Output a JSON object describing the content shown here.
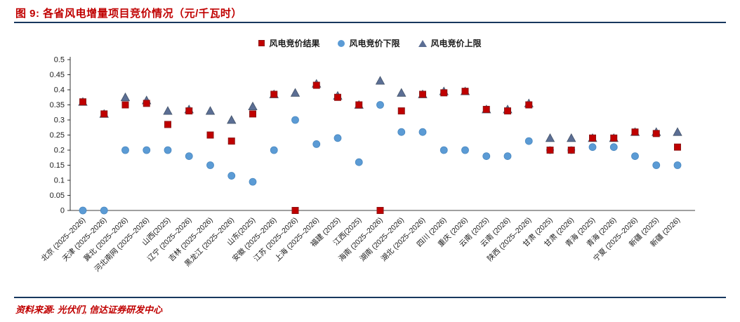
{
  "header": {
    "title": "图 9:  各省风电增量项目竞价情况（元/千瓦时）"
  },
  "footer": {
    "source": "资料来源: 光伏们, 信达证券研发中心"
  },
  "colors": {
    "accent_red": "#C00000",
    "rule_navy": "#17375E",
    "marker_red": "#C00000",
    "marker_blue": "#5B9BD5",
    "marker_slate": "#5B6E94"
  },
  "chart_data": {
    "type": "scatter",
    "title": "各省风电增量项目竞价情况（元/千瓦时）",
    "xlabel": "",
    "ylabel": "",
    "ylim": [
      0,
      0.5
    ],
    "grid": false,
    "legend_position": "top-center",
    "yticks": [
      0,
      0.05,
      0.1,
      0.15,
      0.2,
      0.25,
      0.3,
      0.35,
      0.4,
      0.45,
      0.5
    ],
    "ytick_labels": [
      "0",
      "0.05",
      "0.1",
      "0.15",
      "0.2",
      "0.25",
      "0.3",
      "0.35",
      "0.4",
      "0.45",
      "0.5"
    ],
    "categories": [
      "北京 (2025–2026)",
      "天津 (2025–2026)",
      "冀北 (2025–2026)",
      "河北南网 (2025–2026)",
      "山西(2025)",
      "辽宁 (2025–2026)",
      "吉林 (2025–2026)",
      "黑龙江 (2025–2026)",
      "山东(2025)",
      "安徽 (2025–2026)",
      "江苏 (2025–2026)",
      "上海 (2025–2026)",
      "福建 (2025)",
      "江西(2025)",
      "海南 (2025–2026)",
      "湖南 (2025–2026)",
      "湖北 (2025–2026)",
      "四川 (2026)",
      "重庆 (2026)",
      "云南 (2025)",
      "云南 (2026)",
      "陕西 (2025–2026)",
      "甘肃 (2025)",
      "甘肃 (2026)",
      "青海 (2025)",
      "青海 (2026)",
      "宁夏 (2025–2026)",
      "新疆 (2025)",
      "新疆 (2026)"
    ],
    "series": [
      {
        "name": "风电竞价结果",
        "marker": "square",
        "color": "#C00000",
        "stroke": "#8E1616",
        "values": [
          0.36,
          0.32,
          0.35,
          0.355,
          0.285,
          0.33,
          0.25,
          0.23,
          0.32,
          0.385,
          0,
          0.415,
          0.375,
          0.35,
          0,
          0.33,
          0.385,
          0.39,
          0.395,
          0.335,
          0.33,
          0.35,
          0.2,
          0.2,
          0.24,
          0.24,
          0.26,
          0.255,
          0.21
        ]
      },
      {
        "name": "风电竞价下限",
        "marker": "circle",
        "color": "#5B9BD5",
        "stroke": "#4A88C0",
        "values": [
          0,
          0,
          0.2,
          0.2,
          0.2,
          0.18,
          0.15,
          0.115,
          0.095,
          0.2,
          0.3,
          0.22,
          0.24,
          0.16,
          0.35,
          0.26,
          0.26,
          0.2,
          0.2,
          0.18,
          0.18,
          0.23,
          0.2,
          0.2,
          0.21,
          0.21,
          0.18,
          0.15,
          0.15
        ]
      },
      {
        "name": "风电竞价上限",
        "marker": "triangle",
        "color": "#5B6E94",
        "stroke": "#44546A",
        "values": [
          0.36,
          0.32,
          0.375,
          0.365,
          0.33,
          0.335,
          0.33,
          0.3,
          0.345,
          0.385,
          0.39,
          0.42,
          0.38,
          0.35,
          0.43,
          0.39,
          0.385,
          0.395,
          0.395,
          0.335,
          0.335,
          0.355,
          0.24,
          0.24,
          0.24,
          0.24,
          0.26,
          0.26,
          0.26
        ]
      }
    ]
  }
}
